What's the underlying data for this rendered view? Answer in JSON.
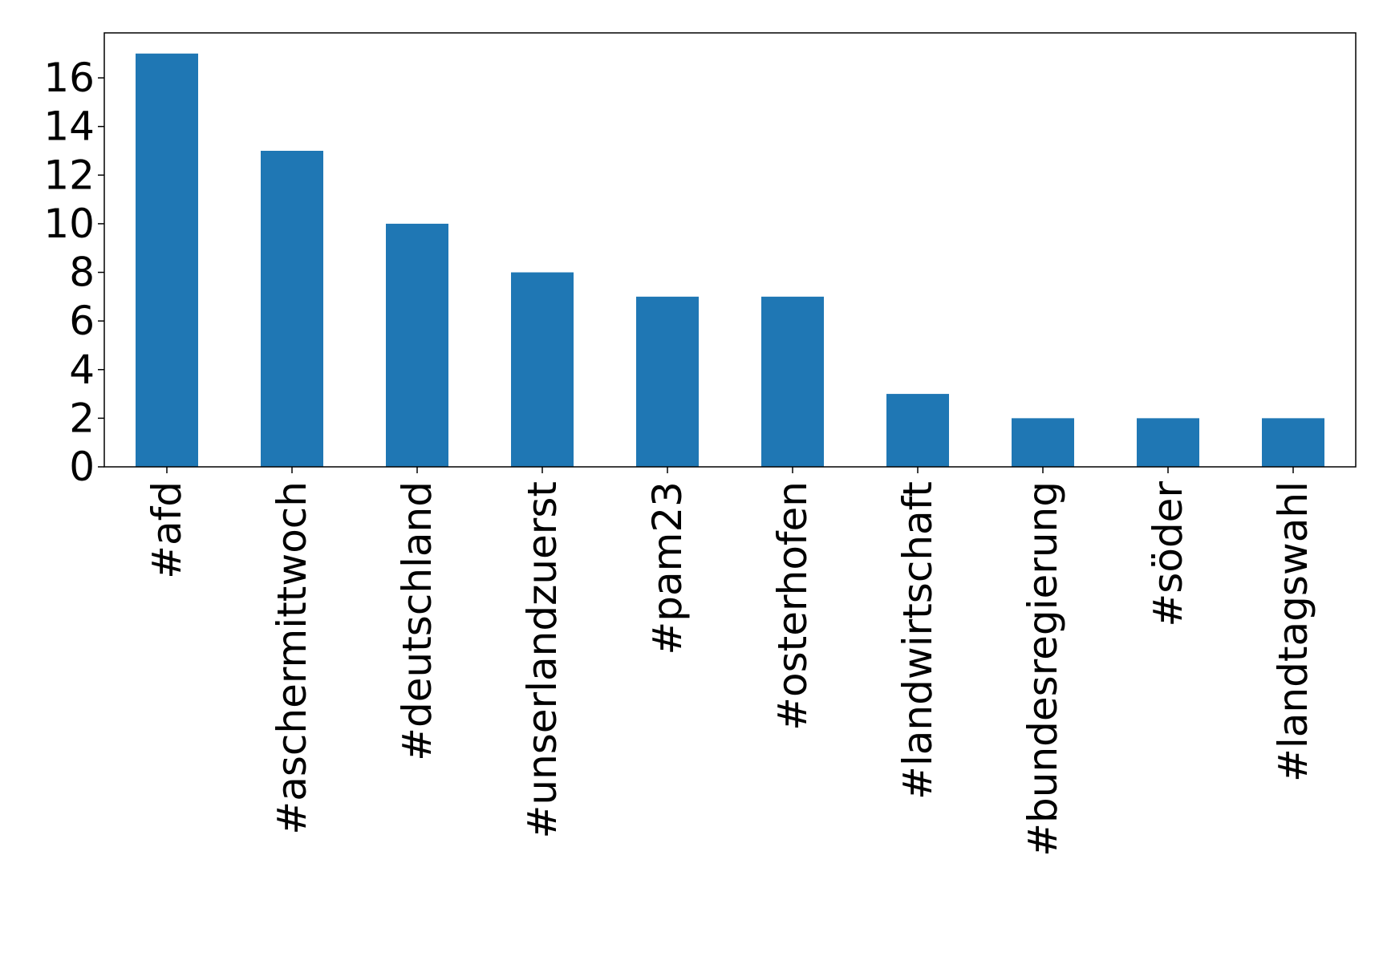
{
  "chart_data": {
    "type": "bar",
    "title": "",
    "xlabel": "",
    "ylabel": "",
    "categories": [
      "#afd",
      "#aschermittwoch",
      "#deutschland",
      "#unserlandzuerst",
      "#pam23",
      "#osterhofen",
      "#landwirtschaft",
      "#bundesregierung",
      "#söder",
      "#landtagswahl"
    ],
    "values": [
      17,
      13,
      10,
      8,
      7,
      7,
      3,
      2,
      2,
      2
    ],
    "ylim": [
      0,
      17.85
    ],
    "yticks": [
      0,
      2,
      4,
      6,
      8,
      10,
      12,
      14,
      16
    ],
    "grid": false,
    "legend": "none",
    "bar_color": "#1f77b4"
  }
}
